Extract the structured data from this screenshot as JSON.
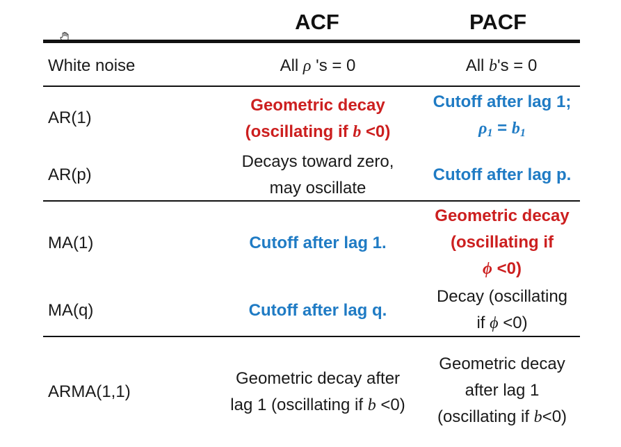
{
  "header": {
    "acf": "ACF",
    "pacf": "PACF"
  },
  "rows": {
    "white_noise": {
      "label": "White noise",
      "acf_pre": "All ",
      "acf_sym": "ρ",
      "acf_post": " 's = 0",
      "pacf_pre": "All ",
      "pacf_sym": "b",
      "pacf_post": "'s = 0"
    },
    "ar1": {
      "label": "AR(1)",
      "acf_line1": "Geometric decay",
      "acf_line2_pre": "(oscillating if ",
      "acf_line2_sym": "b",
      "acf_line2_post": " <0)",
      "pacf_line1": "Cutoff after lag 1;",
      "pacf_sym_rho": "ρ",
      "pacf_sub1": "1",
      "pacf_eq": " = ",
      "pacf_sym_b": "b",
      "pacf_sub2": "1"
    },
    "arp": {
      "label": "AR(p)",
      "acf_line1": "Decays toward zero,",
      "acf_line2": "may oscillate",
      "pacf": "Cutoff after lag p."
    },
    "ma1": {
      "label": "MA(1)",
      "acf": "Cutoff after lag 1.",
      "pacf_line1": "Geometric decay",
      "pacf_line2": "(oscillating if",
      "pacf_sym": "ϕ",
      "pacf_line3_post": " <0)"
    },
    "maq": {
      "label": "MA(q)",
      "acf": "Cutoff after lag q.",
      "pacf_line1": "Decay (oscillating",
      "pacf_line2_pre": "if ",
      "pacf_sym": "ϕ",
      "pacf_line2_post": " <0)"
    },
    "arma11": {
      "label": "ARMA(1,1)",
      "acf_line1": "Geometric decay after",
      "acf_line2_pre": "lag 1 (oscillating if ",
      "acf_sym": "b",
      "acf_line2_post": " <0)",
      "pacf_line1": "Geometric decay",
      "pacf_line2": "after lag 1",
      "pacf_line3_pre": "(oscillating if ",
      "pacf_sym": "b",
      "pacf_line3_post": "<0)"
    }
  },
  "colors": {
    "blue": "#1f7bc4",
    "red": "#cc1f1f",
    "rule": "#111111"
  },
  "icons": {
    "cursor": "hand-cursor-icon"
  }
}
